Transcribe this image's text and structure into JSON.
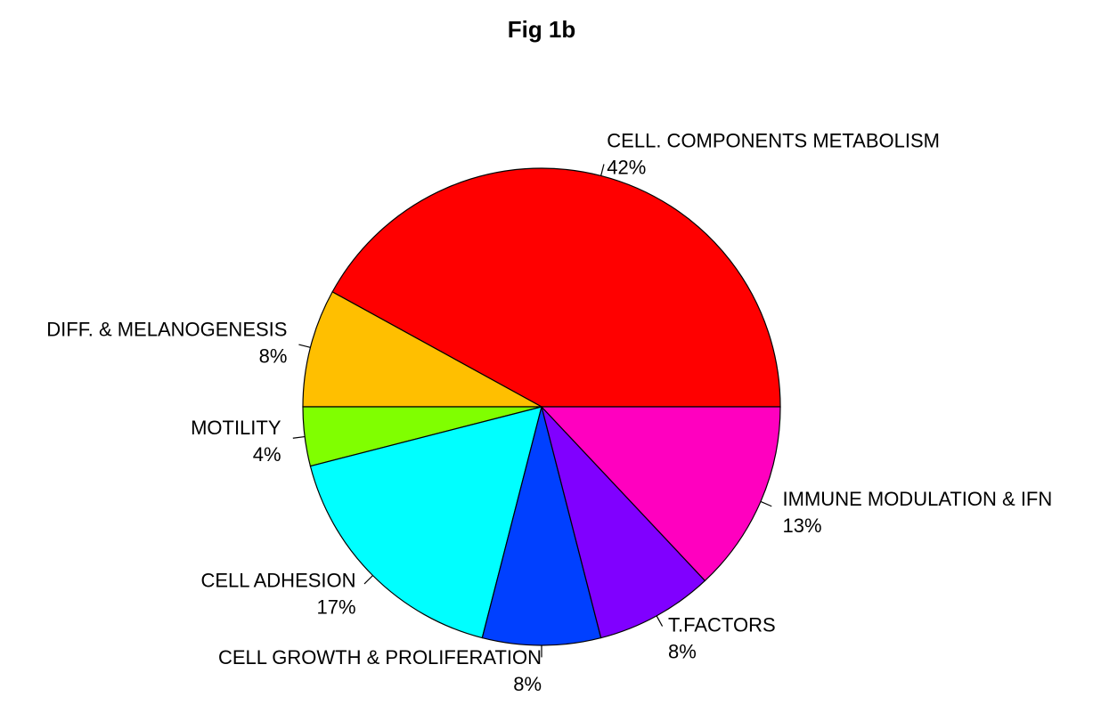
{
  "chart_data": {
    "type": "pie",
    "title": "Fig 1b",
    "direction": "counterclockwise",
    "start_angle_deg": 0,
    "slices": [
      {
        "label": "CELL. COMPONENTS METABOLISM",
        "value": 42,
        "pct_label": "42%",
        "color": "#FF0000"
      },
      {
        "label": "DIFF. & MELANOGENESIS",
        "value": 8,
        "pct_label": "8%",
        "color": "#FFBF00"
      },
      {
        "label": "MOTILITY",
        "value": 4,
        "pct_label": "4%",
        "color": "#80FF00"
      },
      {
        "label": "CELL ADHESION",
        "value": 17,
        "pct_label": "17%",
        "color": "#00FFFF"
      },
      {
        "label": "CELL GROWTH & PROLIFERATION",
        "value": 8,
        "pct_label": "8%",
        "color": "#0040FF"
      },
      {
        "label": "T.FACTORS",
        "value": 8,
        "pct_label": "8%",
        "color": "#8000FF"
      },
      {
        "label": "IMMUNE MODULATION & IFN",
        "value": 13,
        "pct_label": "13%",
        "color": "#FF00BF"
      }
    ]
  }
}
